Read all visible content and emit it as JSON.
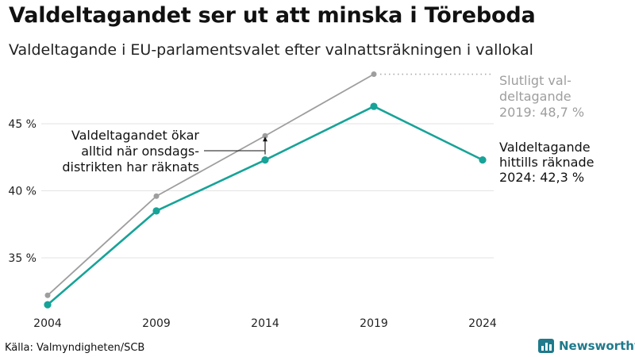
{
  "title": "Valdeltagandet ser ut att minska i Töreboda",
  "subtitle": "Valdeltagande i EU-parlamentsvalet efter valnattsräkningen i vallokal",
  "source": "Källa: Valmyndigheten/SCB",
  "brand": {
    "name": "Newsworthy",
    "icon": "bar-chart-logo-icon",
    "color": "#1f7a8c"
  },
  "chart_data": {
    "type": "line",
    "x": [
      "2004",
      "2009",
      "2014",
      "2019",
      "2024"
    ],
    "ylim": [
      30.5,
      49.5
    ],
    "yticks": [
      35,
      40,
      45
    ],
    "ytick_labels": [
      "35 %",
      "40 %",
      "45 %"
    ],
    "grid": true,
    "series": [
      {
        "color": "#9e9e9e",
        "values": [
          32.2,
          39.6,
          44.1,
          48.7,
          null
        ]
      },
      {
        "color": "#17a398",
        "values": [
          31.5,
          38.5,
          42.3,
          46.3,
          42.3
        ]
      }
    ],
    "annotations": {
      "final_turnout": [
        "Slutligt val-",
        "deltagande",
        "2019: 48,7 %"
      ],
      "counted_so_far": [
        "Valdeltagande",
        "hittills räknade",
        "2024: 42,3 %"
      ],
      "wednesday_note": [
        "Valdeltagandet ökar",
        "alltid när onsdags-",
        "distrikten har räknats"
      ]
    }
  }
}
